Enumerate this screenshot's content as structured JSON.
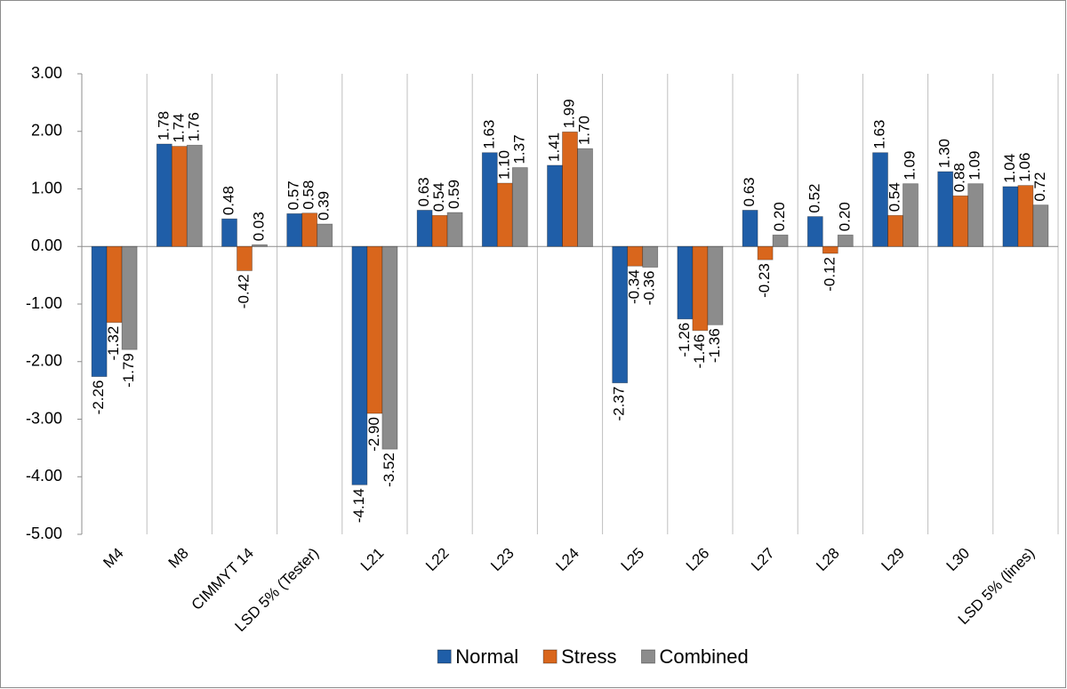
{
  "chart_data": {
    "type": "bar",
    "categories": [
      "M4",
      "M8",
      "CIMMYT 14",
      "LSD 5% (Tester)",
      "L21",
      "L22",
      "L23",
      "L24",
      "L25",
      "L26",
      "L27",
      "L28",
      "L29",
      "L30",
      "LSD 5% (lines)"
    ],
    "series": [
      {
        "name": "Normal",
        "color": "#1f5ea8",
        "values": [
          -2.26,
          1.78,
          0.48,
          0.57,
          -4.14,
          0.63,
          1.63,
          1.41,
          -2.37,
          -1.26,
          0.63,
          0.52,
          1.63,
          1.3,
          1.04
        ],
        "value_labels": [
          "-2.26",
          "1.78",
          "0.48",
          "0.57",
          "-4.14",
          "0.63",
          "1.63",
          "1.41",
          "-2.37",
          "-1.26",
          "0.63",
          "0.52",
          "1.63",
          "1.30",
          "1.04"
        ]
      },
      {
        "name": "Stress",
        "color": "#d9661c",
        "values": [
          -1.32,
          1.74,
          -0.42,
          0.58,
          -2.9,
          0.54,
          1.1,
          1.99,
          -0.34,
          -1.46,
          -0.23,
          -0.12,
          0.54,
          0.88,
          1.06
        ],
        "value_labels": [
          "-1.32",
          "1.74",
          "-0.42",
          "0.58",
          "-2.90",
          "0.54",
          "1.10",
          "1.99",
          "-0.34",
          "-1.46",
          "-0.23",
          "-0.12",
          "0.54",
          "0.88",
          "1.06"
        ]
      },
      {
        "name": "Combined",
        "color": "#8c8c8c",
        "values": [
          -1.79,
          1.76,
          0.03,
          0.39,
          -3.52,
          0.59,
          1.37,
          1.7,
          -0.36,
          -1.36,
          0.2,
          0.2,
          1.09,
          1.09,
          0.72
        ],
        "value_labels": [
          "-1.79",
          "1.76",
          "0.03",
          "0.39",
          "-3.52",
          "0.59",
          "1.37",
          "1.70",
          "-0.36",
          "-1.36",
          "0.20",
          "0.20",
          "1.09",
          "1.09",
          "0.72"
        ]
      }
    ],
    "ylim": [
      -5,
      3
    ],
    "yticks": [
      {
        "value": -5,
        "label": "-5.00"
      },
      {
        "value": -4,
        "label": "-4.00"
      },
      {
        "value": -3,
        "label": "-3.00"
      },
      {
        "value": -2,
        "label": "-2.00"
      },
      {
        "value": -1,
        "label": "-1.00"
      },
      {
        "value": 0,
        "label": "0.00"
      },
      {
        "value": 1,
        "label": "1.00"
      },
      {
        "value": 2,
        "label": "2.00"
      },
      {
        "value": 3,
        "label": "3.00"
      }
    ],
    "legend": "bottom"
  }
}
